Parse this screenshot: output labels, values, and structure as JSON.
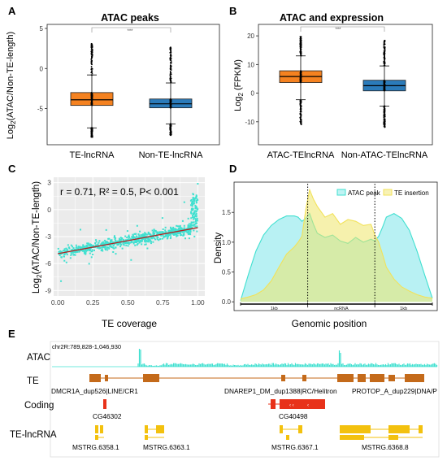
{
  "colors": {
    "orange": "#F58220",
    "blue": "#2B7BBA",
    "cyan": "#40E0D0",
    "yellow": "#F2E25A",
    "atac_area": "#7DE6EA",
    "te_area": "#EEE56A",
    "panel_bg": "#EBEBEB",
    "brown": "#C46A1A",
    "red": "#E8321A",
    "gold": "#F3C10E",
    "fit": "#B22222"
  },
  "chart_data": [
    {
      "panel": "A",
      "type": "box",
      "title": "ATAC peaks",
      "ylabel_parts": [
        "Log",
        "2",
        "(ATAC/Non-TE-length)"
      ],
      "xlabel": "",
      "ylim": [
        -9.5,
        5.5
      ],
      "yticks": [
        -5,
        0,
        5
      ],
      "significance": "***",
      "categories": [
        "TE-lncRNA",
        "Non-TE-lncRNA"
      ],
      "boxes": [
        {
          "q1": -4.6,
          "median": -3.9,
          "q3": -3.0,
          "whisker_low": -7.4,
          "whisker_high": -0.8,
          "fill": "orange"
        },
        {
          "q1": -4.9,
          "median": -4.4,
          "q3": -3.8,
          "whisker_low": -6.9,
          "whisker_high": -1.8,
          "fill": "blue"
        }
      ]
    },
    {
      "panel": "B",
      "type": "box",
      "title": "ATAC and expression",
      "ylabel_parts": [
        "Log",
        "2",
        " (FPKM)"
      ],
      "xlabel": "",
      "ylim": [
        -18,
        24
      ],
      "yticks": [
        -10,
        0,
        10,
        20
      ],
      "significance": "***",
      "categories": [
        "ATAC-TElncRNA",
        "Non-ATAC-TElncRNA"
      ],
      "boxes": [
        {
          "q1": 3.7,
          "median": 5.8,
          "q3": 7.8,
          "whisker_low": -2.3,
          "whisker_high": 13.0,
          "fill": "orange"
        },
        {
          "q1": 0.8,
          "median": 2.6,
          "q3": 4.5,
          "whisker_low": -4.5,
          "whisker_high": 9.5,
          "fill": "blue"
        }
      ]
    },
    {
      "panel": "C",
      "type": "scatter",
      "annotation": "r = 0.71, R² = 0.5, P< 0.001",
      "ylabel": "Log2(ATAC/Non-TE-length)",
      "xlabel": "TE coverage",
      "xlim": [
        -0.03,
        1.05
      ],
      "ylim": [
        -9.6,
        3.6
      ],
      "xticks": [
        "0.00",
        "0.25",
        "0.50",
        "0.75",
        "1.00"
      ],
      "yticks": [
        "-9",
        "-6",
        "-3",
        "0",
        "3"
      ],
      "fit_line": {
        "x": [
          0.0,
          1.0
        ],
        "y": [
          -4.9,
          -2.0
        ]
      },
      "point_color": "cyan"
    },
    {
      "panel": "D",
      "type": "area",
      "xlabel": "Genomic position",
      "ylabel": "Density",
      "ylim": [
        -0.12,
        1.98
      ],
      "yticks": [
        "0.0",
        "0.5",
        "1.0",
        "1.5"
      ],
      "x": [
        0,
        0.04,
        0.08,
        0.12,
        0.16,
        0.2,
        0.24,
        0.28,
        0.3,
        0.32,
        0.34,
        0.36,
        0.38,
        0.4,
        0.44,
        0.48,
        0.52,
        0.56,
        0.6,
        0.64,
        0.68,
        0.7,
        0.72,
        0.74,
        0.76,
        0.8,
        0.84,
        0.88,
        0.92,
        0.96,
        1.0
      ],
      "series": [
        {
          "name": "ATAC peak",
          "color": "cyan",
          "values": [
            0.02,
            0.45,
            0.85,
            1.12,
            1.28,
            1.38,
            1.44,
            1.44,
            1.42,
            1.35,
            1.4,
            1.48,
            1.3,
            1.15,
            1.08,
            1.12,
            1.02,
            0.98,
            1.08,
            1.0,
            1.05,
            1.02,
            1.1,
            1.25,
            1.42,
            1.48,
            1.4,
            1.2,
            0.85,
            0.45,
            0.06
          ]
        },
        {
          "name": "TE insertion",
          "color": "yellow",
          "values": [
            0.05,
            0.08,
            0.12,
            0.2,
            0.35,
            0.58,
            0.8,
            0.92,
            1.0,
            1.1,
            1.55,
            1.88,
            1.72,
            1.6,
            1.42,
            1.48,
            1.3,
            1.38,
            1.35,
            1.28,
            1.3,
            1.12,
            1.0,
            0.8,
            0.58,
            0.38,
            0.25,
            0.18,
            0.12,
            0.08,
            0.06
          ]
        }
      ],
      "boundaries": [
        0.35,
        0.7
      ],
      "segment_labels": [
        "1kb",
        "ncRNA",
        "1kb"
      ]
    }
  ],
  "panel_e": {
    "locus": "chr2R:789,828-1,046,930",
    "tracks": [
      {
        "label": "ATAC"
      },
      {
        "label": "TE",
        "features": [
          "DMCR1A_dup526|LINE/CR1",
          "DNAREP1_DM_dup1388|RC/Helitron",
          "PROTOP_A_dup229|DNA/P"
        ]
      },
      {
        "label": "Coding",
        "features": [
          "CG46302",
          "CG40498"
        ]
      },
      {
        "label": "TE-lncRNA",
        "features": [
          "MSTRG.6358.1",
          "MSTRG.6363.1",
          "MSTRG.6367.1",
          "MSTRG.6368.8"
        ]
      }
    ]
  },
  "panel_labels": [
    "A",
    "B",
    "C",
    "D",
    "E"
  ]
}
